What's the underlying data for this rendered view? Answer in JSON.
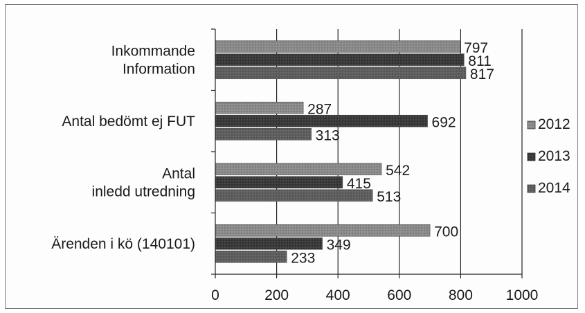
{
  "chart_data": {
    "type": "bar",
    "orientation": "horizontal",
    "categories": [
      [
        "Inkommande",
        "Information"
      ],
      [
        "Antal bedömt ej FUT"
      ],
      [
        "Antal",
        "inledd utredning"
      ],
      [
        "Ärenden i kö (140101)"
      ]
    ],
    "series": [
      {
        "name": "2012",
        "color": "#8a8a8a",
        "values": [
          797,
          287,
          542,
          700
        ]
      },
      {
        "name": "2013",
        "color": "#3a3a3a",
        "values": [
          811,
          692,
          415,
          349
        ]
      },
      {
        "name": "2014",
        "color": "#5e5e5e",
        "values": [
          817,
          313,
          513,
          233
        ]
      }
    ],
    "xlim": [
      0,
      1000
    ],
    "xticks": [
      0,
      200,
      400,
      600,
      800,
      1000
    ],
    "grid": "vertical",
    "legend": "right",
    "title": "",
    "xlabel": "",
    "ylabel": ""
  }
}
